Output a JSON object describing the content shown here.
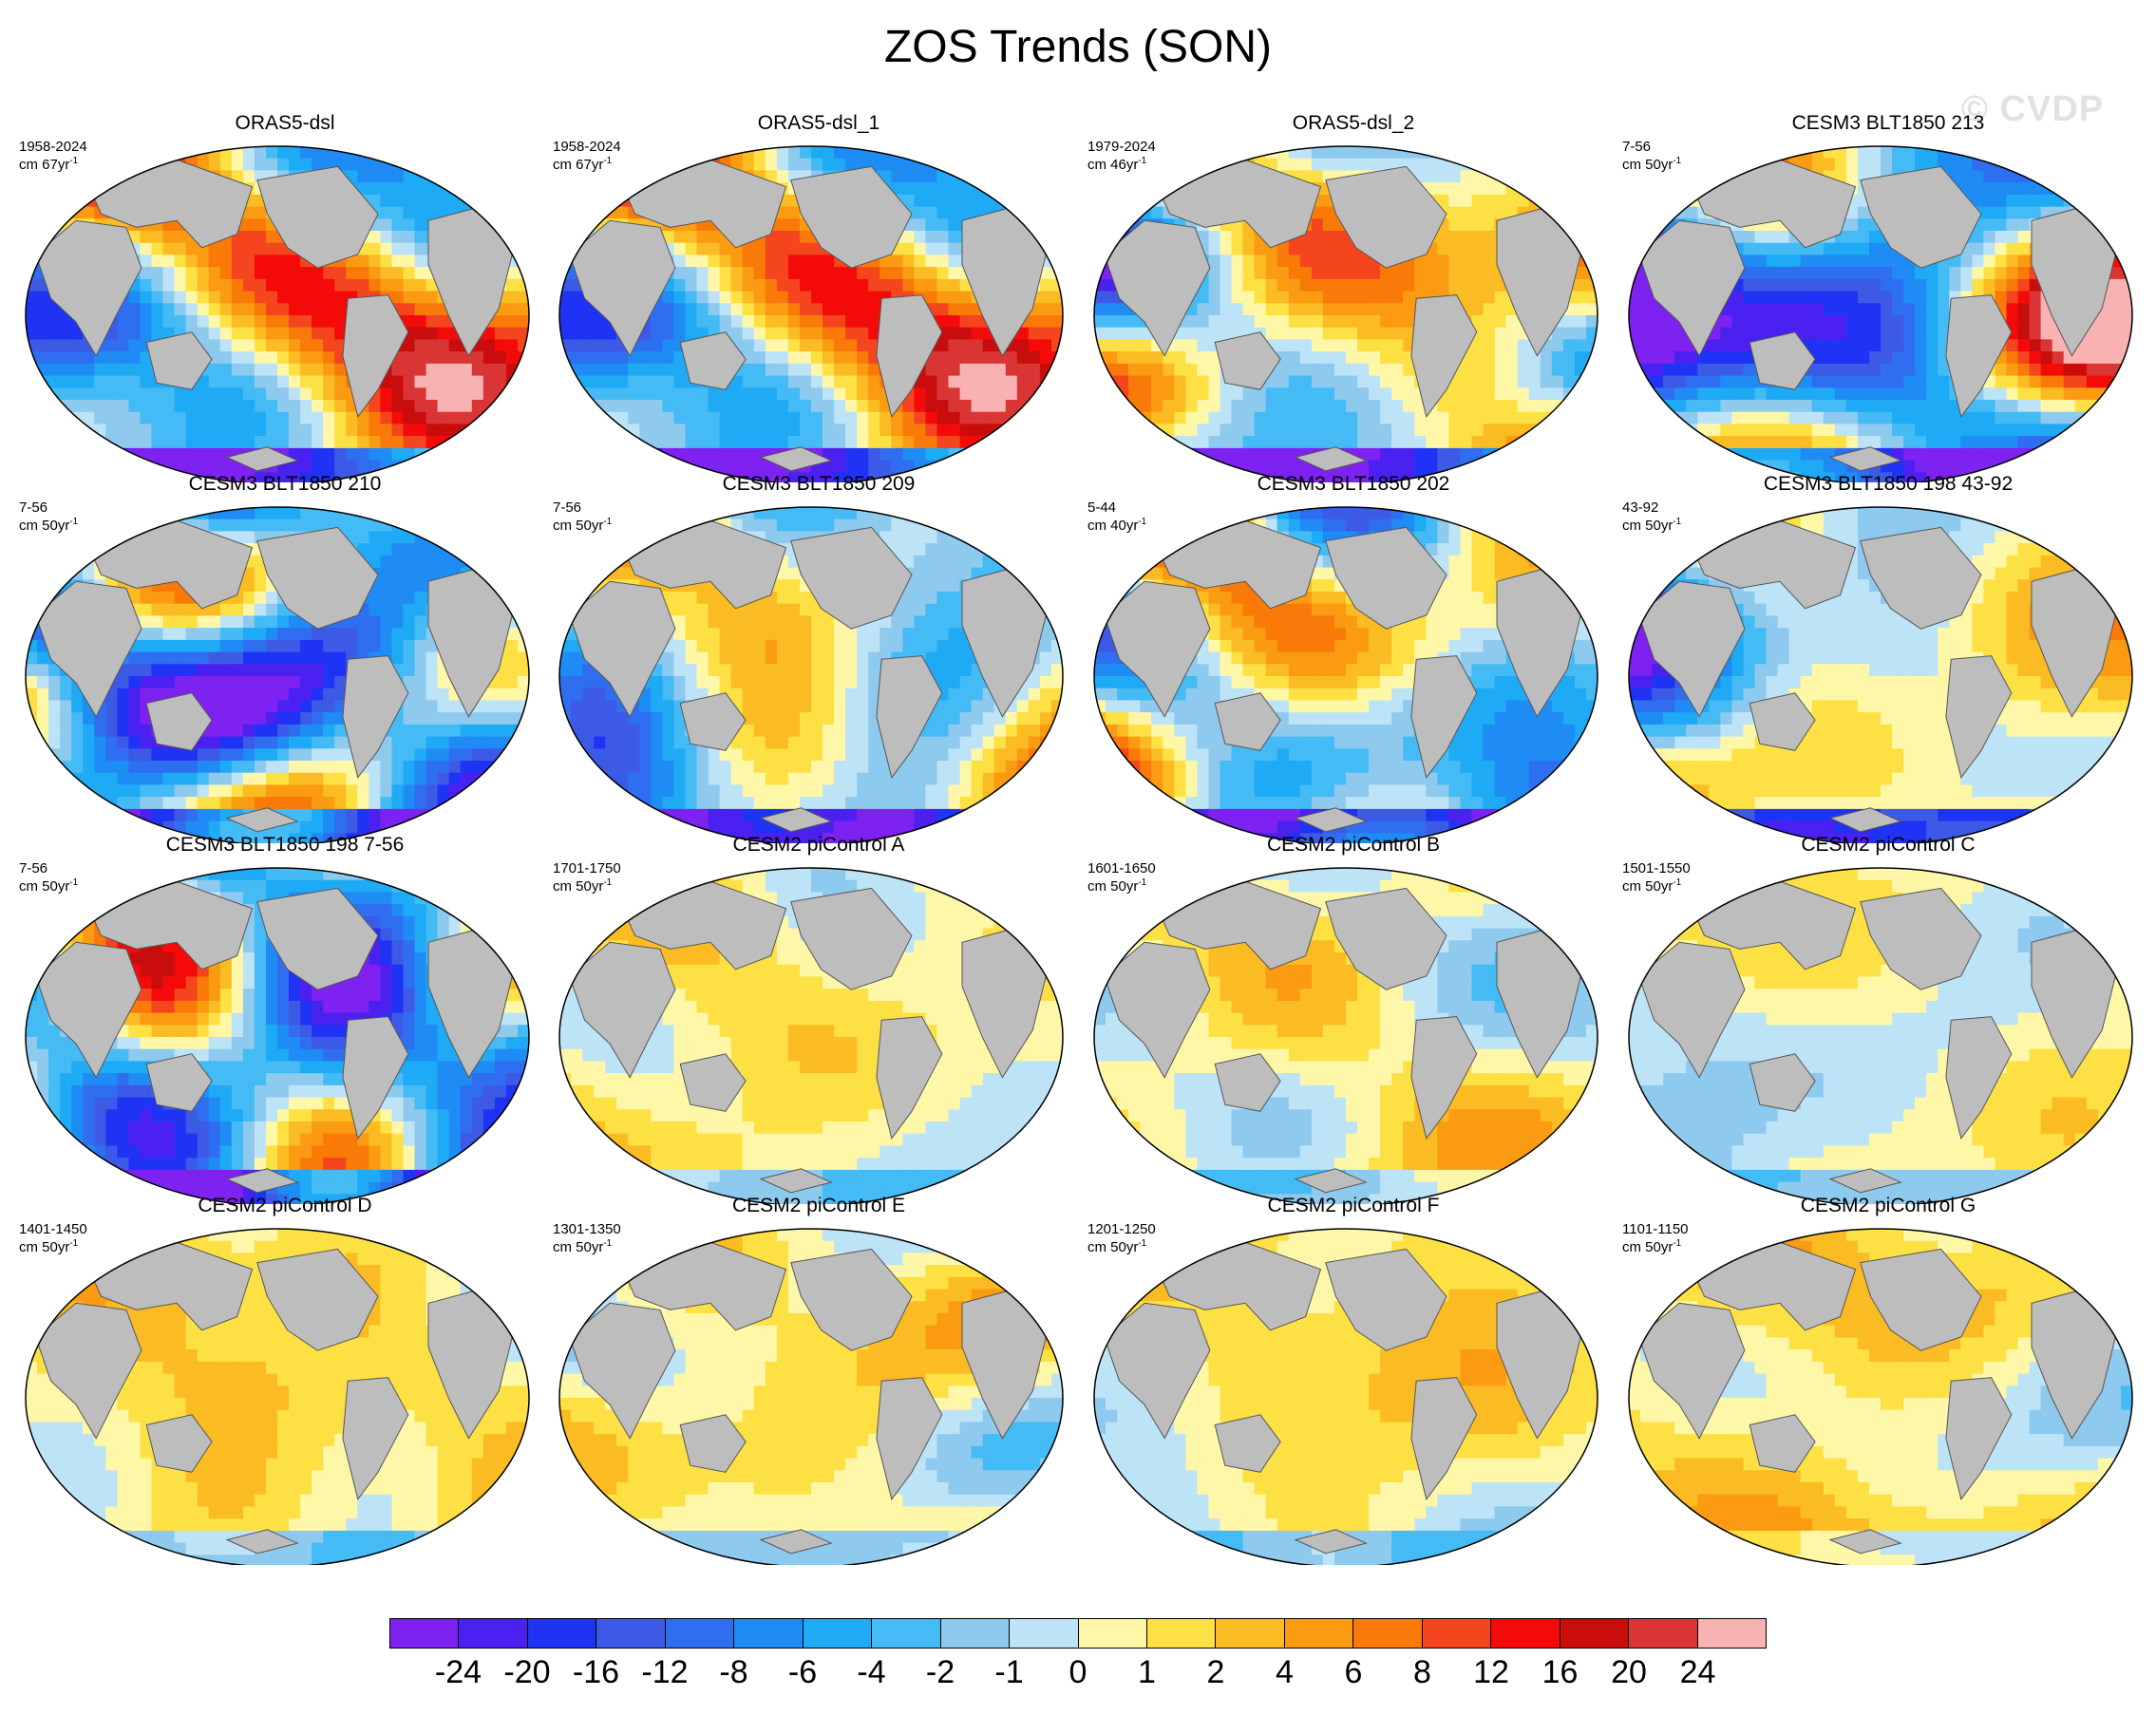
{
  "title": "ZOS Trends (SON)",
  "watermark": "© CVDP",
  "panels": [
    {
      "title": "ORAS5-dsl",
      "period": "1958-2024",
      "units": "cm 67yr",
      "exp": "-1",
      "palette": "strong",
      "bias": 0.15,
      "seed": 11
    },
    {
      "title": "ORAS5-dsl_1",
      "period": "1958-2024",
      "units": "cm 67yr",
      "exp": "-1",
      "palette": "strong",
      "bias": 0.15,
      "seed": 11
    },
    {
      "title": "ORAS5-dsl_2",
      "period": "1979-2024",
      "units": "cm 46yr",
      "exp": "-1",
      "palette": "strong",
      "bias": 0.25,
      "seed": 23
    },
    {
      "title": "CESM3 BLT1850 213",
      "period": "7-56",
      "units": "cm 50yr",
      "exp": "-1",
      "palette": "strong",
      "bias": -0.45,
      "seed": 37
    },
    {
      "title": "CESM3 BLT1850 210",
      "period": "7-56",
      "units": "cm 50yr",
      "exp": "-1",
      "palette": "strong",
      "bias": -0.4,
      "seed": 41
    },
    {
      "title": "CESM3 BLT1850 209",
      "period": "7-56",
      "units": "cm 50yr",
      "exp": "-1",
      "palette": "strong",
      "bias": 0.05,
      "seed": 53
    },
    {
      "title": "CESM3 BLT1850 202",
      "period": "5-44",
      "units": "cm 40yr",
      "exp": "-1",
      "palette": "strong",
      "bias": 0.0,
      "seed": 59
    },
    {
      "title": "CESM3 BLT1850 198 43-92",
      "period": "43-92",
      "units": "cm 50yr",
      "exp": "-1",
      "palette": "strong",
      "bias": 0.1,
      "seed": 67
    },
    {
      "title": "CESM3 BLT1850 198 7-56",
      "period": "7-56",
      "units": "cm 50yr",
      "exp": "-1",
      "palette": "strong",
      "bias": -0.35,
      "seed": 71
    },
    {
      "title": "CESM2 piControl A",
      "period": "1701-1750",
      "units": "cm 50yr",
      "exp": "-1",
      "palette": "weak",
      "bias": 0.15,
      "seed": 83
    },
    {
      "title": "CESM2 piControl B",
      "period": "1601-1650",
      "units": "cm 50yr",
      "exp": "-1",
      "palette": "weak",
      "bias": 0.0,
      "seed": 89
    },
    {
      "title": "CESM2 piControl C",
      "period": "1501-1550",
      "units": "cm 50yr",
      "exp": "-1",
      "palette": "weak",
      "bias": 0.1,
      "seed": 97
    },
    {
      "title": "CESM2 piControl D",
      "period": "1401-1450",
      "units": "cm 50yr",
      "exp": "-1",
      "palette": "weak",
      "bias": 0.25,
      "seed": 101
    },
    {
      "title": "CESM2 piControl E",
      "period": "1301-1350",
      "units": "cm 50yr",
      "exp": "-1",
      "palette": "weak",
      "bias": 0.05,
      "seed": 107
    },
    {
      "title": "CESM2 piControl F",
      "period": "1201-1250",
      "units": "cm 50yr",
      "exp": "-1",
      "palette": "weak",
      "bias": 0.2,
      "seed": 113
    },
    {
      "title": "CESM2 piControl G",
      "period": "1101-1150",
      "units": "cm 50yr",
      "exp": "-1",
      "palette": "weak",
      "bias": 0.3,
      "seed": 127
    }
  ],
  "colorbar": {
    "colors": [
      "#7d22f0",
      "#4a21f0",
      "#1f33f5",
      "#3c5ae6",
      "#2f6ef0",
      "#1f8cf5",
      "#1eaaf5",
      "#44bbf5",
      "#8ec9ee",
      "#bde3f7",
      "#fff7a8",
      "#fde044",
      "#fbbb22",
      "#fb9b12",
      "#f97a08",
      "#f5451e",
      "#f50a0a",
      "#c90d0d",
      "#d93535",
      "#f9b2b2"
    ],
    "labels": [
      "-24",
      "-20",
      "-16",
      "-12",
      "-8",
      "-6",
      "-4",
      "-2",
      "-1",
      "0",
      "1",
      "2",
      "4",
      "6",
      "8",
      "12",
      "16",
      "20",
      "24"
    ]
  },
  "land_color": "#bdbdbd"
}
